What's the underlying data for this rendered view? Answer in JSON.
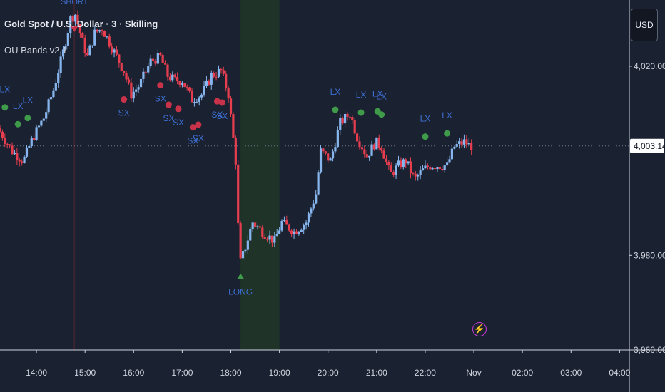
{
  "header": {
    "title": "Gold Spot / U.S. Dollar · 3 · Skilling",
    "indicator": "OU Bands v2.1"
  },
  "price_axis": {
    "currency": "USD"
  },
  "chart_data": {
    "type": "candlestick",
    "symbol": "Gold Spot / U.S. Dollar",
    "interval": "3",
    "source": "Skilling",
    "indicator": "OU Bands v2.1",
    "ylim": [
      3960,
      4034
    ],
    "yticks": [
      {
        "value": 4020,
        "label": "4,020.00"
      },
      {
        "value": 3980,
        "label": "3,980.00"
      },
      {
        "value": 3960,
        "label": "3,960.00"
      }
    ],
    "last_price": {
      "value": 4003.14,
      "label": "4,003.14"
    },
    "xticks": [
      "14:00",
      "15:00",
      "16:00",
      "17:00",
      "18:00",
      "19:00",
      "20:00",
      "21:00",
      "22:00",
      "Nov",
      "02:00",
      "03:00",
      "04:00"
    ],
    "xlim_hours": [
      13.25,
      26.2
    ],
    "colors": {
      "up": "#87b6ef",
      "down": "#e63e4f",
      "lx": "#3f9a4a",
      "sx": "#c9334a",
      "label": "#3d6fd3",
      "long": "#3f9a4a",
      "highlight": "#1f3329"
    },
    "highlight_zone_hours": [
      18.2,
      19.0
    ],
    "short_marker_hour": 14.78,
    "path": [
      [
        13.2,
        4007
      ],
      [
        13.5,
        4002
      ],
      [
        13.73,
        4000
      ],
      [
        13.93,
        4005
      ],
      [
        14.15,
        4009
      ],
      [
        14.35,
        4015
      ],
      [
        14.55,
        4023
      ],
      [
        14.7,
        4030
      ],
      [
        14.8,
        4031
      ],
      [
        14.95,
        4025
      ],
      [
        15.05,
        4022
      ],
      [
        15.2,
        4027
      ],
      [
        15.35,
        4028
      ],
      [
        15.55,
        4024
      ],
      [
        15.8,
        4019
      ],
      [
        15.95,
        4014
      ],
      [
        16.12,
        4016
      ],
      [
        16.35,
        4021
      ],
      [
        16.55,
        4022
      ],
      [
        16.7,
        4018
      ],
      [
        16.85,
        4017
      ],
      [
        17.0,
        4017
      ],
      [
        17.2,
        4013
      ],
      [
        17.4,
        4014
      ],
      [
        17.6,
        4018
      ],
      [
        17.8,
        4019
      ],
      [
        17.95,
        4014
      ],
      [
        18.1,
        4000
      ],
      [
        18.18,
        3978
      ],
      [
        18.28,
        3981
      ],
      [
        18.45,
        3987
      ],
      [
        18.65,
        3985
      ],
      [
        18.9,
        3983
      ],
      [
        19.05,
        3987
      ],
      [
        19.3,
        3985
      ],
      [
        19.55,
        3987
      ],
      [
        19.75,
        3993
      ],
      [
        19.85,
        4002
      ],
      [
        20.05,
        4000
      ],
      [
        20.25,
        4008
      ],
      [
        20.45,
        4010
      ],
      [
        20.6,
        4005
      ],
      [
        20.8,
        4001
      ],
      [
        20.98,
        4004
      ],
      [
        21.1,
        4003
      ],
      [
        21.28,
        3997
      ],
      [
        21.45,
        3999
      ],
      [
        21.6,
        4000
      ],
      [
        21.78,
        3996
      ],
      [
        21.95,
        3998
      ],
      [
        22.1,
        3999
      ],
      [
        22.3,
        3999
      ],
      [
        22.45,
        3999
      ],
      [
        22.6,
        4003
      ],
      [
        22.8,
        4004
      ],
      [
        22.95,
        4003.1
      ]
    ],
    "lx_signals": [
      {
        "hour": 13.35,
        "label": "LX"
      },
      {
        "hour": 13.62,
        "label": "LX"
      },
      {
        "hour": 13.82,
        "label": "LX"
      },
      {
        "hour": 20.15,
        "label": "LX"
      },
      {
        "hour": 20.68,
        "label": "LX"
      },
      {
        "hour": 21.02,
        "label": "LX"
      },
      {
        "hour": 21.1,
        "label": "LX"
      },
      {
        "hour": 22.0,
        "label": "LX"
      },
      {
        "hour": 22.45,
        "label": "LX"
      }
    ],
    "sx_signals": [
      {
        "hour": 15.8,
        "label": "SX"
      },
      {
        "hour": 16.55,
        "label": "SX"
      },
      {
        "hour": 16.72,
        "label": "SX"
      },
      {
        "hour": 16.92,
        "label": "SX"
      },
      {
        "hour": 17.22,
        "label": "SX"
      },
      {
        "hour": 17.33,
        "label": "SX"
      },
      {
        "hour": 17.72,
        "label": "SX"
      },
      {
        "hour": 17.82,
        "label": "SX"
      }
    ],
    "long_signal": {
      "hour": 18.2,
      "label": "LONG"
    },
    "short_signal": {
      "hour": 14.78,
      "label": "SHORT"
    }
  }
}
